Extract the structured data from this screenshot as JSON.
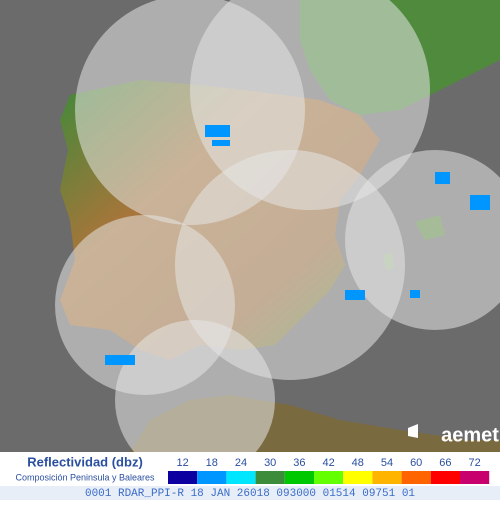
{
  "logo": "aemet",
  "legend": {
    "title": "Reflectividad (dbz)",
    "subtitle": "Composición Peninsula y Baleares",
    "items": [
      {
        "value": 12,
        "color": "#0c00a0"
      },
      {
        "value": 18,
        "color": "#0096ff"
      },
      {
        "value": 24,
        "color": "#00e6ff"
      },
      {
        "value": 30,
        "color": "#3c8c3c"
      },
      {
        "value": 36,
        "color": "#00c800"
      },
      {
        "value": 42,
        "color": "#64ff00"
      },
      {
        "value": 48,
        "color": "#ffff00"
      },
      {
        "value": 54,
        "color": "#ffb400"
      },
      {
        "value": 60,
        "color": "#ff6400"
      },
      {
        "value": 66,
        "color": "#ff0000"
      },
      {
        "value": 72,
        "color": "#c8006e"
      }
    ]
  },
  "footer": "0001 RDAR_PPI-R 18 JAN 26018 093000 01514 09751 01"
}
